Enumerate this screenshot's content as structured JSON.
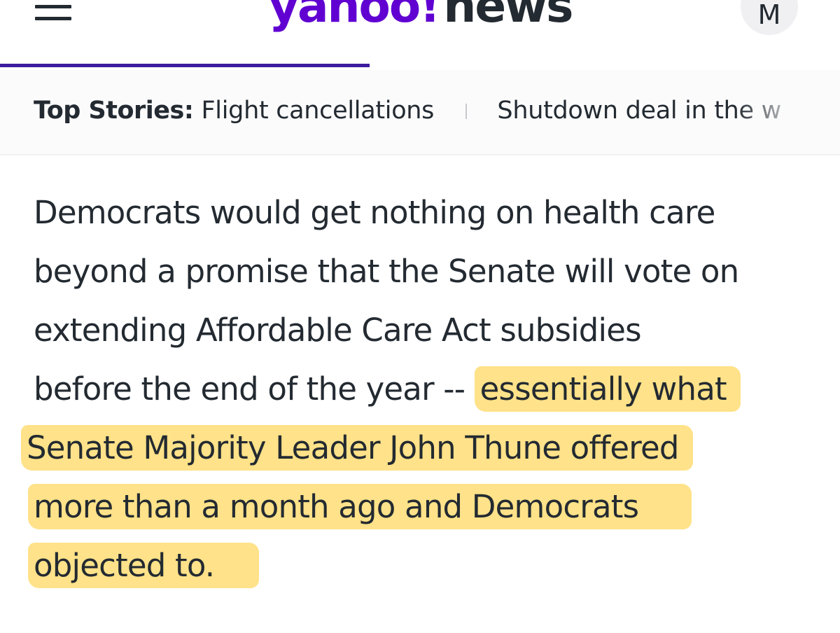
{
  "header": {
    "brand": "yahoo!",
    "section": "news",
    "avatar_initial": "M",
    "reading_progress": 0.44
  },
  "top_stories": {
    "label": "Top Stories:",
    "items": [
      "Flight cancellations",
      "Shutdown deal in the w"
    ]
  },
  "article": {
    "lines": [
      "Democrats would get nothing on health care",
      "beyond a promise that the Senate will vote on",
      "extending Affordable Care Act subsidies",
      "before the end of the year -- "
    ],
    "highlighted_lines": [
      "essentially what",
      "Senate Majority Leader John Thune offered",
      "more than a month ago and Democrats",
      "objected to."
    ]
  },
  "colors": {
    "brand_purple": "#6001d2",
    "text": "#232a31",
    "progress": "#3d1c9e",
    "highlight": "#ffd140"
  },
  "icons": {
    "menu": "hamburger-menu-icon"
  }
}
